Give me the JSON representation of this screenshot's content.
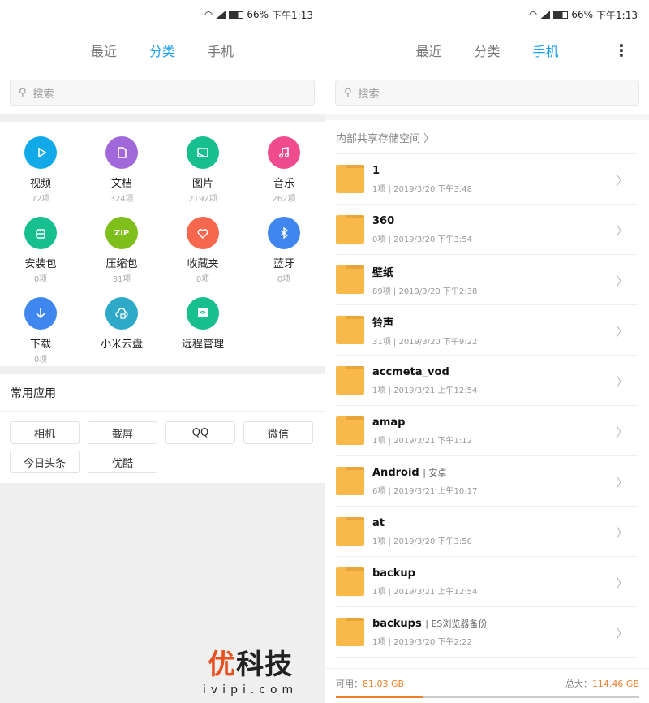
{
  "status": {
    "battery": "66%",
    "time": "下午1:13"
  },
  "tabs": [
    "最近",
    "分类",
    "手机"
  ],
  "search": {
    "placeholder": "搜索"
  },
  "categories": [
    {
      "label": "视频",
      "count": "72项",
      "color": "#12a9e8",
      "icon": "play-icon"
    },
    {
      "label": "文档",
      "count": "324项",
      "color": "#a168db",
      "icon": "document-icon"
    },
    {
      "label": "图片",
      "count": "2192项",
      "color": "#17bf8f",
      "icon": "image-icon"
    },
    {
      "label": "音乐",
      "count": "262项",
      "color": "#f04b8e",
      "icon": "music-icon"
    },
    {
      "label": "安装包",
      "count": "0项",
      "color": "#17bf8f",
      "icon": "package-icon"
    },
    {
      "label": "压缩包",
      "count": "31项",
      "color": "#7fbf1c",
      "icon": "zip-icon",
      "glyph": "ZIP"
    },
    {
      "label": "收藏夹",
      "count": "0项",
      "color": "#f5674f",
      "icon": "heart-icon"
    },
    {
      "label": "蓝牙",
      "count": "0项",
      "color": "#3f86ee",
      "icon": "bluetooth-icon"
    },
    {
      "label": "下载",
      "count": "0项",
      "color": "#3f86ee",
      "icon": "download-icon"
    },
    {
      "label": "小米云盘",
      "color": "#2ea9c7",
      "icon": "cloud-icon"
    },
    {
      "label": "远程管理",
      "color": "#17bf8f",
      "icon": "remote-icon"
    }
  ],
  "apps": {
    "title": "常用应用",
    "items": [
      "相机",
      "截屏",
      "QQ",
      "微信",
      "今日头条",
      "优酷"
    ]
  },
  "breadcrumb": "内部共享存储空间",
  "folders": [
    {
      "name": "1",
      "meta": "1项 | 2019/3/20 下午3:48"
    },
    {
      "name": "360",
      "meta": "0项 | 2019/3/20 下午3:54"
    },
    {
      "name": "壁纸",
      "meta": "89项 | 2019/3/20 下午2:38"
    },
    {
      "name": "铃声",
      "meta": "31项 | 2019/3/20 下午9:22"
    },
    {
      "name": "accmeta_vod",
      "meta": "1项 | 2019/3/21 上午12:54"
    },
    {
      "name": "amap",
      "meta": "1项 | 2019/3/21 下午1:12"
    },
    {
      "name": "Android",
      "tag": "| 安卓",
      "meta": "6项 | 2019/3/21 上午10:17"
    },
    {
      "name": "at",
      "meta": "1项 | 2019/3/20 下午3:50"
    },
    {
      "name": "backup",
      "meta": "1项 | 2019/3/21 上午12:54"
    },
    {
      "name": "backups",
      "tag": "| ES浏览器备份",
      "meta": "1项 | 2019/3/20 下午2:22"
    }
  ],
  "storage": {
    "available_label": "可用：",
    "available": "81.03 GB",
    "total_label": "总大：",
    "total": "114.46 GB",
    "used_percent": 29
  },
  "watermark": {
    "brand": "优科技",
    "url": "ivipi.com"
  }
}
